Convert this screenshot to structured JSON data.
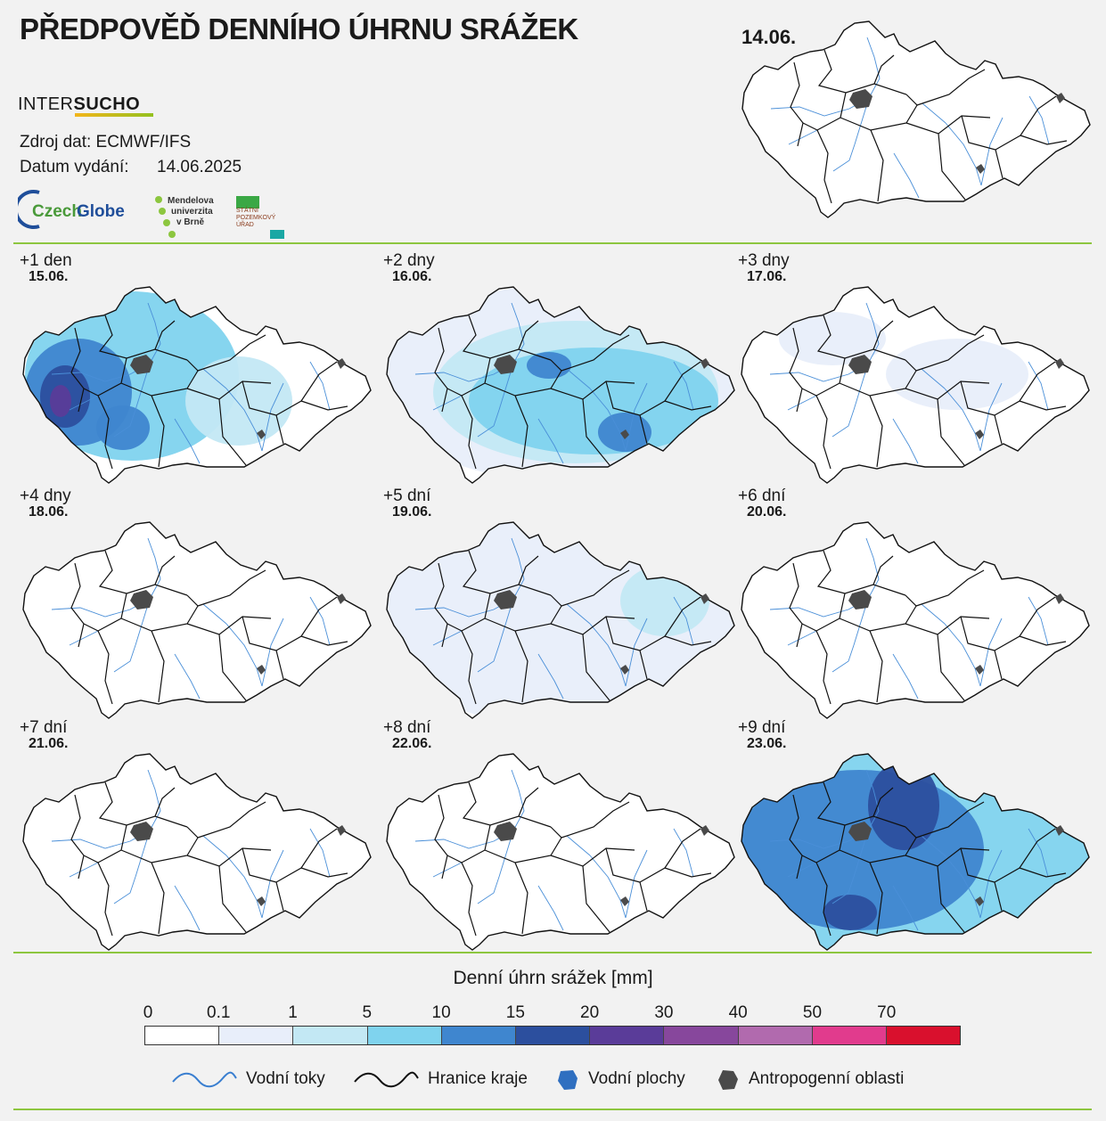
{
  "header": {
    "title": "PŘEDPOVĚĎ DENNÍHO ÚHRNU SRÁŽEK",
    "brand_part1": "INTER",
    "brand_part2": "SUCHO",
    "source": "Zdroj dat: ECMWF/IFS",
    "issued_label": "Datum vydání:",
    "issued_date": "14.06.2025",
    "logos": {
      "czechglobe_a": "Czech",
      "czechglobe_b": "Globe",
      "mendel_lines": [
        "Mendelova",
        "univerzita",
        "v Brně"
      ],
      "spu_lines": [
        "STÁTNÍ",
        "POZEMKOVÝ",
        "ÚŘAD"
      ]
    }
  },
  "current_map": {
    "date": "14.06."
  },
  "forecast_panels": [
    {
      "label": "+1 den",
      "date": "15.06.",
      "intensity": "heavy-west"
    },
    {
      "label": "+2 dny",
      "date": "16.06.",
      "intensity": "moderate-central"
    },
    {
      "label": "+3 dny",
      "date": "17.06.",
      "intensity": "trace"
    },
    {
      "label": "+4 dny",
      "date": "18.06.",
      "intensity": "none"
    },
    {
      "label": "+5 dní",
      "date": "19.06.",
      "intensity": "light-wide"
    },
    {
      "label": "+6 dní",
      "date": "20.06.",
      "intensity": "none"
    },
    {
      "label": "+7 dní",
      "date": "21.06.",
      "intensity": "none"
    },
    {
      "label": "+8 dní",
      "date": "22.06.",
      "intensity": "none"
    },
    {
      "label": "+9 dní",
      "date": "23.06.",
      "intensity": "heavy-wide"
    }
  ],
  "legend": {
    "title": "Denní úhrn srážek [mm]",
    "ticks": [
      "0",
      "0.1",
      "1",
      "5",
      "10",
      "15",
      "20",
      "30",
      "40",
      "50",
      "70"
    ],
    "colors": [
      "#ffffff",
      "#e8eefa",
      "#c3e8f4",
      "#7fd3ee",
      "#3f86cf",
      "#2c4f9e",
      "#5a3c99",
      "#87479c",
      "#b16aae",
      "#e13b8d",
      "#d9102d"
    ],
    "items": [
      {
        "label": "Vodní toky",
        "icon": "river-line-icon"
      },
      {
        "label": "Hranice kraje",
        "icon": "border-line-icon"
      },
      {
        "label": "Vodní plochy",
        "icon": "water-body-icon"
      },
      {
        "label": "Antropogenní oblasti",
        "icon": "urban-area-icon"
      }
    ]
  }
}
